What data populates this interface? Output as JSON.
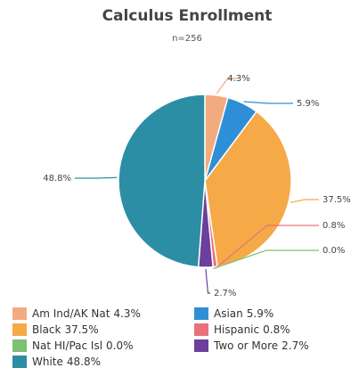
{
  "chart_data": {
    "type": "pie",
    "title": "Calculus Enrollment",
    "subtitle": "n=256",
    "categories": [
      "Am Ind/AK Nat",
      "Asian",
      "Black",
      "Hispanic",
      "Nat HI/Pac Isl",
      "Two or More",
      "White"
    ],
    "values": [
      4.3,
      5.9,
      37.5,
      0.8,
      0.0,
      2.7,
      48.8
    ],
    "value_labels": [
      "4.3%",
      "5.9%",
      "37.5%",
      "0.8%",
      "0.0%",
      "2.7%",
      "48.8%"
    ],
    "colors": [
      "#f2ab7e",
      "#2f8fd6",
      "#f5a947",
      "#e8717c",
      "#7dbf73",
      "#6b3f9c",
      "#2b8ea4"
    ],
    "legend": "bottom"
  }
}
